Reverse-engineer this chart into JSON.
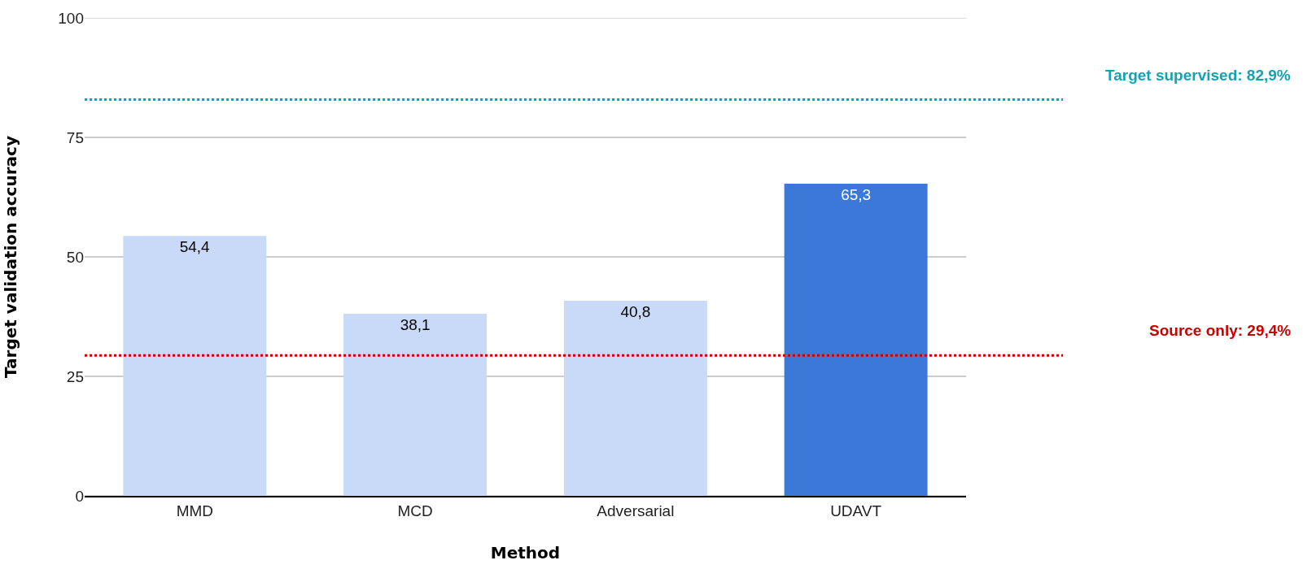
{
  "chart_data": {
    "type": "bar",
    "xlabel": "Method",
    "ylabel": "Target validation accuracy",
    "categories": [
      "MMD",
      "MCD",
      "Adversarial",
      "UDAVT"
    ],
    "values": [
      54.4,
      38.1,
      40.8,
      65.3
    ],
    "colors": [
      "#c9daf8",
      "#c9daf8",
      "#c9daf8",
      "#3c78d8"
    ],
    "value_labels": [
      "54,4",
      "38,1",
      "40,8",
      "65,3"
    ],
    "ylim": [
      0,
      100
    ],
    "yticks": [
      0,
      25,
      50,
      75,
      100
    ],
    "grid": "y",
    "ref_lines": [
      {
        "axis": "y",
        "value": 82.9,
        "label": "Target supervised: 82,9%",
        "color": "#12a4b5",
        "line_style": "dotted"
      },
      {
        "axis": "y",
        "value": 29.4,
        "label": "Source only: 29,4%",
        "color": "#cc0000",
        "line_style": "dotted"
      }
    ]
  }
}
